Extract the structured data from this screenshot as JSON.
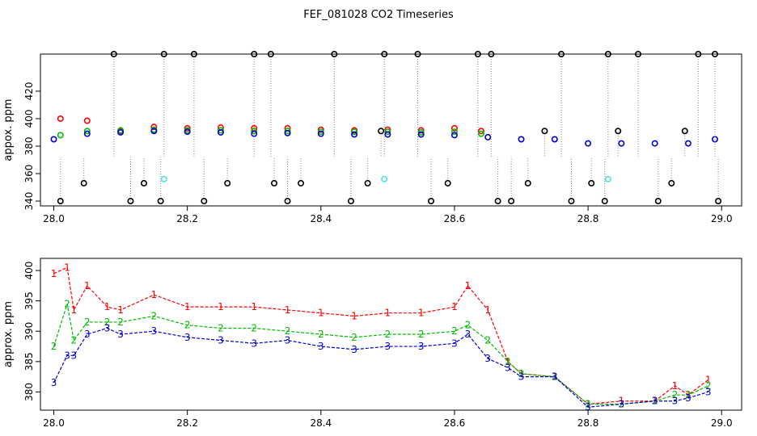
{
  "figure_title": "FEF_081028  CO2 Timeseries",
  "colors": {
    "series1": "#ff0000",
    "series2": "#00bb00",
    "series3": "#0000cc",
    "flagged": "#000000",
    "cyan": "#4de3e3"
  },
  "chart_data": [
    {
      "type": "scatter",
      "title": "",
      "ylabel": "appox. ppm",
      "xlabel": "",
      "xlim": [
        27.98,
        29.03
      ],
      "ylim": [
        336.5,
        447
      ],
      "xticks": [
        28.0,
        28.2,
        28.4,
        28.6,
        28.8,
        29.0
      ],
      "xtick_labels": [
        "28.0",
        "28.2",
        "28.4",
        "28.6",
        "28.8",
        "29.0"
      ],
      "yticks": [
        340,
        360,
        380,
        400,
        420
      ],
      "ytick_labels": [
        "340",
        "360",
        "380",
        "400",
        "420"
      ],
      "series": [
        {
          "name": "1",
          "color": "#ff0000",
          "x": [
            28.01,
            28.05,
            28.1,
            28.15,
            28.2,
            28.25,
            28.3,
            28.35,
            28.4,
            28.45,
            28.5,
            28.55,
            28.6,
            28.64
          ],
          "y": [
            400,
            398.5,
            391,
            394,
            393,
            393.5,
            393,
            393,
            392,
            391.5,
            392,
            391.5,
            393,
            391
          ]
        },
        {
          "name": "2",
          "color": "#00bb00",
          "x": [
            28.01,
            28.05,
            28.1,
            28.15,
            28.2,
            28.25,
            28.3,
            28.35,
            28.4,
            28.45,
            28.5,
            28.55,
            28.6,
            28.64
          ],
          "y": [
            388,
            391,
            391.5,
            392,
            391.5,
            391.5,
            391,
            391,
            390.5,
            390.5,
            390.5,
            390,
            390.5,
            389
          ]
        },
        {
          "name": "3",
          "color": "#0000cc",
          "x": [
            28.0,
            28.05,
            28.1,
            28.15,
            28.2,
            28.25,
            28.3,
            28.35,
            28.4,
            28.45,
            28.5,
            28.55,
            28.6,
            28.65,
            28.7,
            28.75,
            28.8,
            28.85,
            28.9,
            28.95,
            28.99
          ],
          "y": [
            385,
            389,
            390,
            391,
            390.5,
            390,
            389,
            389.5,
            389,
            388.5,
            388.5,
            388.5,
            388,
            386.5,
            385,
            385,
            382,
            382,
            382,
            382,
            385
          ]
        },
        {
          "name": "flagged",
          "color": "#000000",
          "x": [
            28.01,
            28.045,
            28.09,
            28.115,
            28.135,
            28.16,
            28.165,
            28.21,
            28.225,
            28.26,
            28.3,
            28.325,
            28.33,
            28.35,
            28.37,
            28.42,
            28.445,
            28.47,
            28.49,
            28.495,
            28.545,
            28.565,
            28.59,
            28.635,
            28.655,
            28.665,
            28.685,
            28.71,
            28.735,
            28.76,
            28.775,
            28.805,
            28.825,
            28.83,
            28.845,
            28.875,
            28.905,
            28.925,
            28.945,
            28.965,
            28.99,
            28.995
          ],
          "y": [
            340,
            353,
            447,
            340,
            353,
            340,
            447,
            447,
            340,
            353,
            447,
            447,
            353,
            340,
            353,
            447,
            340,
            353,
            391,
            447,
            447,
            340,
            353,
            447,
            447,
            340,
            340,
            353,
            391,
            447,
            340,
            353,
            340,
            447,
            391,
            447,
            340,
            353,
            391,
            447,
            447,
            340
          ]
        },
        {
          "name": "cyan",
          "color": "#4de3e3",
          "x": [
            28.165,
            28.495,
            28.83
          ],
          "y": [
            356,
            356,
            356
          ]
        }
      ]
    },
    {
      "type": "line",
      "title": "",
      "ylabel": "approx. ppm",
      "xlabel": "",
      "xlim": [
        27.98,
        29.03
      ],
      "ylim": [
        377,
        402
      ],
      "xticks": [
        28.0,
        28.2,
        28.4,
        28.6,
        28.8,
        29.0
      ],
      "xtick_labels": [
        "28.0",
        "28.2",
        "28.4",
        "28.6",
        "28.8",
        "29.0"
      ],
      "yticks": [
        380,
        385,
        390,
        395,
        400
      ],
      "ytick_labels": [
        "380",
        "385",
        "390",
        "395",
        "400"
      ],
      "series": [
        {
          "name": "1",
          "color": "#ff0000",
          "x": [
            28.0,
            28.02,
            28.03,
            28.05,
            28.08,
            28.1,
            28.15,
            28.2,
            28.25,
            28.3,
            28.35,
            28.4,
            28.45,
            28.5,
            28.55,
            28.6,
            28.62,
            28.65,
            28.68,
            28.7,
            28.75,
            28.8,
            28.85,
            28.9,
            28.93,
            28.95,
            28.98
          ],
          "y": [
            399.5,
            400.5,
            393.5,
            397.5,
            394,
            393.5,
            396,
            394,
            394,
            394,
            393.5,
            393,
            392.5,
            393,
            393,
            394,
            397.5,
            393.5,
            385,
            383,
            382.5,
            378,
            378.5,
            378.5,
            381,
            379.5,
            382
          ]
        },
        {
          "name": "2",
          "color": "#00bb00",
          "x": [
            28.0,
            28.02,
            28.03,
            28.05,
            28.08,
            28.1,
            28.15,
            28.2,
            28.25,
            28.3,
            28.35,
            28.4,
            28.45,
            28.5,
            28.55,
            28.6,
            28.62,
            28.65,
            28.68,
            28.7,
            28.75,
            28.8,
            28.85,
            28.9,
            28.93,
            28.95,
            28.98
          ],
          "y": [
            387.5,
            394.5,
            388.5,
            391.5,
            391.5,
            391.5,
            392.5,
            391,
            390.5,
            390.5,
            390,
            389.5,
            389,
            389.5,
            389.5,
            390,
            391,
            388.5,
            385,
            383,
            382.5,
            378,
            378,
            378.5,
            379.5,
            379.5,
            381
          ]
        },
        {
          "name": "3",
          "color": "#0000cc",
          "x": [
            28.0,
            28.02,
            28.03,
            28.05,
            28.08,
            28.1,
            28.15,
            28.2,
            28.25,
            28.3,
            28.35,
            28.4,
            28.45,
            28.5,
            28.55,
            28.6,
            28.62,
            28.65,
            28.68,
            28.7,
            28.75,
            28.8,
            28.85,
            28.9,
            28.93,
            28.95,
            28.98
          ],
          "y": [
            381.5,
            386,
            386,
            389.5,
            390.5,
            389.5,
            390,
            389,
            388.5,
            388,
            388.5,
            387.5,
            387,
            387.5,
            387.5,
            388,
            389.5,
            385.5,
            384,
            382.5,
            382.5,
            377.5,
            378,
            378.5,
            378.5,
            379,
            380
          ]
        }
      ]
    }
  ]
}
